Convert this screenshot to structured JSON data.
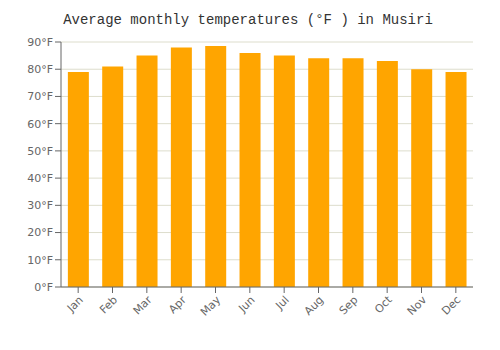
{
  "chart_data": {
    "type": "bar",
    "title": "Average monthly temperatures (°F ) in Musiri",
    "categories": [
      "Jan",
      "Feb",
      "Mar",
      "Apr",
      "May",
      "Jun",
      "Jul",
      "Aug",
      "Sep",
      "Oct",
      "Nov",
      "Dec"
    ],
    "values": [
      79,
      81,
      85,
      88,
      88.5,
      86,
      85,
      84,
      84,
      83,
      80,
      79
    ],
    "color": "#FFA500",
    "ylim": [
      0,
      90
    ],
    "yticks": [
      {
        "value": 0,
        "label": "0°F"
      },
      {
        "value": 10,
        "label": "10°F"
      },
      {
        "value": 20,
        "label": "20°F"
      },
      {
        "value": 30,
        "label": "30°F"
      },
      {
        "value": 40,
        "label": "40°F"
      },
      {
        "value": 50,
        "label": "50°F"
      },
      {
        "value": 60,
        "label": "60°F"
      },
      {
        "value": 70,
        "label": "70°F"
      },
      {
        "value": 80,
        "label": "80°F"
      },
      {
        "value": 90,
        "label": "90°F"
      }
    ],
    "grid": true
  }
}
